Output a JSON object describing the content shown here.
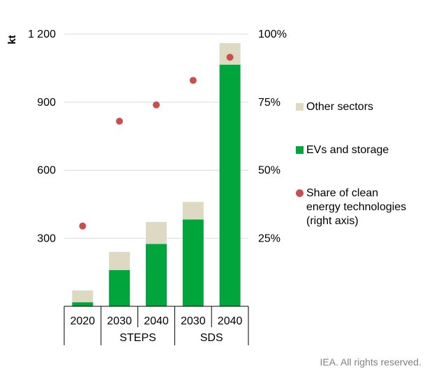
{
  "chart_data": {
    "type": "bar",
    "stacked": true,
    "x": [
      {
        "year": "2020",
        "group": ""
      },
      {
        "year": "2030",
        "group": "STEPS"
      },
      {
        "year": "2040",
        "group": "STEPS"
      },
      {
        "year": "2030",
        "group": "SDS"
      },
      {
        "year": "2040",
        "group": "SDS"
      }
    ],
    "groups": [
      "STEPS",
      "SDS"
    ],
    "series": [
      {
        "name": "EVs and storage",
        "type": "bar",
        "axis": "left",
        "color": "#00a63c",
        "values": [
          18,
          160,
          275,
          383,
          1065
        ]
      },
      {
        "name": "Other sectors",
        "type": "bar",
        "axis": "left",
        "color": "#ddd9c3",
        "values": [
          52,
          80,
          97,
          77,
          95
        ]
      },
      {
        "name": "Share of clean energy technologies (right axis)",
        "type": "scatter",
        "axis": "right",
        "color": "#c94f4f",
        "values": [
          29.5,
          68,
          74,
          83,
          91.5
        ]
      }
    ],
    "y_left": {
      "label": "kt",
      "ticks": [
        "300",
        "600",
        "900",
        "1 200"
      ],
      "tick_values": [
        300,
        600,
        900,
        1200
      ],
      "range": [
        0,
        1200
      ]
    },
    "y_right": {
      "ticks": [
        "25%",
        "50%",
        "75%",
        "100%"
      ],
      "tick_values": [
        25,
        50,
        75,
        100
      ],
      "range": [
        0,
        100
      ]
    },
    "grid": true,
    "legend_position": "right"
  },
  "legend": {
    "items": [
      {
        "label": "Other sectors",
        "color": "#ddd9c3",
        "shape": "square"
      },
      {
        "label": "EVs and storage",
        "color": "#00a63c",
        "shape": "square"
      },
      {
        "label": "Share of clean\nenergy technologies\n(right axis)",
        "color": "#c94f4f",
        "shape": "circle"
      }
    ]
  },
  "footer": {
    "text": "IEA. All rights reserved."
  }
}
